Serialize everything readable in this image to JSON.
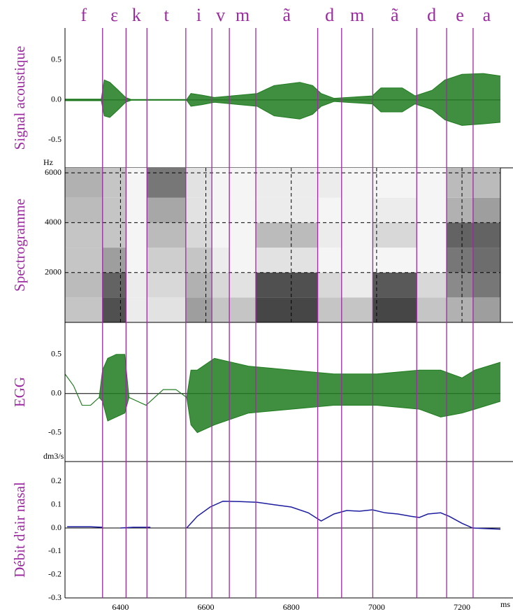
{
  "phonemes": {
    "labels": [
      "f",
      "ε",
      "k",
      "t",
      "i",
      "v",
      "m",
      "ã",
      "d",
      "m",
      "ã",
      "d",
      "e",
      "a"
    ],
    "boundaries": [
      6358,
      6413,
      6462,
      6553,
      6614,
      6655,
      6717,
      6862,
      6918,
      6991,
      7094,
      7164,
      7226
    ]
  },
  "chart_data": [
    {
      "type": "waveform",
      "y_label": "Signal acoustique",
      "xlim": [
        6270,
        7290
      ],
      "ylim": [
        -0.85,
        0.9
      ],
      "yticks": [
        0.5,
        {
          "value": 0,
          "label": "0.0"
        },
        -0.5
      ],
      "x": [
        6270,
        6355,
        6362,
        6375,
        6395,
        6412,
        6425,
        6460,
        6555,
        6565,
        6590,
        6620,
        6720,
        6760,
        6820,
        6850,
        6870,
        6900,
        6990,
        7010,
        7060,
        7090,
        7130,
        7160,
        7200,
        7250,
        7290
      ],
      "series": [
        {
          "color": "#1e7b1e",
          "values": [
            0.01,
            0.01,
            0.25,
            0.22,
            0.12,
            0.03,
            0.005,
            0.005,
            0.005,
            0.08,
            0.06,
            0.03,
            0.08,
            0.18,
            0.22,
            0.18,
            0.08,
            0.02,
            0.05,
            0.15,
            0.15,
            0.05,
            0.12,
            0.25,
            0.32,
            0.33,
            0.3
          ]
        },
        {
          "color": "#1e7b1e",
          "values": [
            -0.01,
            -0.01,
            -0.2,
            -0.22,
            -0.12,
            -0.03,
            -0.005,
            -0.005,
            -0.005,
            -0.08,
            -0.06,
            -0.03,
            -0.08,
            -0.2,
            -0.24,
            -0.18,
            -0.08,
            -0.02,
            -0.05,
            -0.15,
            -0.15,
            -0.05,
            -0.12,
            -0.25,
            -0.32,
            -0.3,
            -0.28
          ]
        }
      ]
    },
    {
      "type": "heatmap",
      "y_label": "Spectrogramme",
      "y_unit": "Hz",
      "xlim": [
        6270,
        7290
      ],
      "ylim": [
        0,
        6200
      ],
      "yticks": [
        6000,
        4000,
        2000
      ],
      "grid": true,
      "x_bins": [
        6270,
        6358,
        6413,
        6462,
        6553,
        6614,
        6655,
        6717,
        6862,
        6918,
        6991,
        7094,
        7164,
        7226,
        7290
      ],
      "y_bins": [
        0,
        1000,
        2000,
        3000,
        4000,
        5000,
        6200
      ],
      "z": [
        [
          0.3,
          0.9,
          0.1,
          0.15,
          0.5,
          0.3,
          0.3,
          0.95,
          0.3,
          0.3,
          0.95,
          0.3,
          0.4,
          0.5
        ],
        [
          0.35,
          0.8,
          0.1,
          0.2,
          0.4,
          0.2,
          0.15,
          0.9,
          0.2,
          0.1,
          0.85,
          0.2,
          0.6,
          0.7
        ],
        [
          0.3,
          0.5,
          0.05,
          0.25,
          0.3,
          0.1,
          0.05,
          0.15,
          0.05,
          0.05,
          0.05,
          0.05,
          0.7,
          0.75
        ],
        [
          0.3,
          0.3,
          0.05,
          0.35,
          0.2,
          0.05,
          0.05,
          0.35,
          0.1,
          0.05,
          0.2,
          0.05,
          0.8,
          0.8
        ],
        [
          0.35,
          0.3,
          0.05,
          0.45,
          0.15,
          0.05,
          0.05,
          0.1,
          0.05,
          0.05,
          0.1,
          0.05,
          0.4,
          0.5
        ],
        [
          0.4,
          0.3,
          0.05,
          0.7,
          0.15,
          0.05,
          0.05,
          0.1,
          0.1,
          0.05,
          0.05,
          0.05,
          0.35,
          0.35
        ]
      ]
    },
    {
      "type": "waveform",
      "y_label": "EGG",
      "xlim": [
        6270,
        7290
      ],
      "ylim": [
        -0.87,
        0.91
      ],
      "yticks": [
        0.5,
        {
          "value": 0,
          "label": "0.0"
        },
        -0.5
      ],
      "x": [
        6270,
        6290,
        6310,
        6330,
        6350,
        6358,
        6370,
        6390,
        6410,
        6420,
        6440,
        6460,
        6480,
        6500,
        6530,
        6555,
        6565,
        6580,
        6620,
        6700,
        6800,
        6900,
        7000,
        7100,
        7150,
        7200,
        7230,
        7260,
        7290
      ],
      "series": [
        {
          "color": "#1e7b1e",
          "values": [
            0.25,
            0.1,
            -0.15,
            -0.15,
            -0.05,
            0.3,
            0.45,
            0.5,
            0.5,
            -0.05,
            -0.1,
            -0.15,
            -0.05,
            0.05,
            0.05,
            -0.05,
            0.3,
            0.3,
            0.45,
            0.35,
            0.3,
            0.25,
            0.25,
            0.3,
            0.3,
            0.2,
            0.3,
            0.35,
            0.4
          ]
        },
        {
          "color": "#1e7b1e",
          "values": [
            0.25,
            0.1,
            -0.15,
            -0.15,
            -0.05,
            -0.1,
            -0.35,
            -0.3,
            -0.25,
            -0.05,
            -0.1,
            -0.15,
            -0.05,
            0.05,
            0.05,
            -0.05,
            -0.4,
            -0.5,
            -0.4,
            -0.25,
            -0.2,
            -0.15,
            -0.15,
            -0.2,
            -0.3,
            -0.25,
            -0.2,
            -0.15,
            -0.1
          ]
        }
      ]
    },
    {
      "type": "line",
      "y_label": "Débit d'air nasal",
      "y_unit": "dm3/s",
      "x_label": "ms",
      "xlim": [
        6270,
        7290
      ],
      "ylim": [
        -0.3,
        0.285
      ],
      "yticks": [
        0.2,
        0.1,
        {
          "value": 0,
          "label": "0.0"
        },
        -0.1,
        -0.2,
        -0.3
      ],
      "xticks": [
        6400,
        6600,
        6800,
        7000,
        7200
      ],
      "x": [
        6275,
        6300,
        6330,
        6358,
        6370,
        6400,
        6430,
        6470,
        6500,
        6555,
        6580,
        6610,
        6640,
        6680,
        6720,
        6760,
        6800,
        6840,
        6870,
        6900,
        6930,
        6960,
        6990,
        7020,
        7050,
        7080,
        7100,
        7120,
        7150,
        7170,
        7200,
        7225,
        7260,
        7290
      ],
      "series": [
        {
          "color": "#1c1ca0",
          "values": [
            0.005,
            0.005,
            0.005,
            0.003,
            null,
            0,
            0.003,
            0.003,
            null,
            0,
            0.05,
            0.09,
            0.115,
            0.113,
            0.11,
            0.1,
            0.09,
            0.065,
            0.03,
            0.06,
            0.075,
            0.072,
            0.078,
            0.065,
            0.06,
            0.05,
            0.045,
            0.06,
            0.065,
            0.05,
            0.02,
            0,
            -0.003,
            -0.005
          ]
        }
      ]
    }
  ]
}
